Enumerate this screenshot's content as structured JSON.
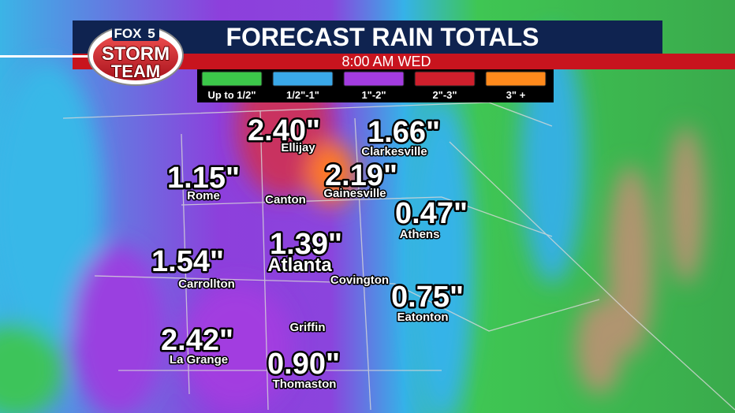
{
  "header": {
    "logo": {
      "brand": "FOX",
      "channel": "5",
      "line1": "STORM",
      "line2": "TEAM"
    },
    "title": "FORECAST RAIN TOTALS",
    "time": "8:00 AM WED"
  },
  "legend": [
    {
      "label": "Up to 1/2\"",
      "color": "#3cc84a"
    },
    {
      "label": "1/2\"-1\"",
      "color": "#3aa8e8"
    },
    {
      "label": "1\"-2\"",
      "color": "#a33ce0"
    },
    {
      "label": "2\"-3\"",
      "color": "#cf1f2c"
    },
    {
      "label": "3\" +",
      "color": "#ff8a1c"
    }
  ],
  "cities": [
    {
      "amount": "2.40\"",
      "name": "Ellijay"
    },
    {
      "amount": "1.66\"",
      "name": "Clarkesville"
    },
    {
      "amount": "1.15\"",
      "name": "Rome"
    },
    {
      "amount": "2.19\"",
      "name": "Gainesville"
    },
    {
      "name": "Canton"
    },
    {
      "amount": "0.47\"",
      "name": "Athens"
    },
    {
      "amount": "1.39\"",
      "name": "Atlanta"
    },
    {
      "amount": "1.54\"",
      "name": "Carrollton"
    },
    {
      "name": "Covington"
    },
    {
      "amount": "0.75\"",
      "name": "Eatonton"
    },
    {
      "name": "Griffin"
    },
    {
      "amount": "2.42\"",
      "name": "La Grange"
    },
    {
      "amount": "0.90\"",
      "name": "Thomaston"
    }
  ]
}
